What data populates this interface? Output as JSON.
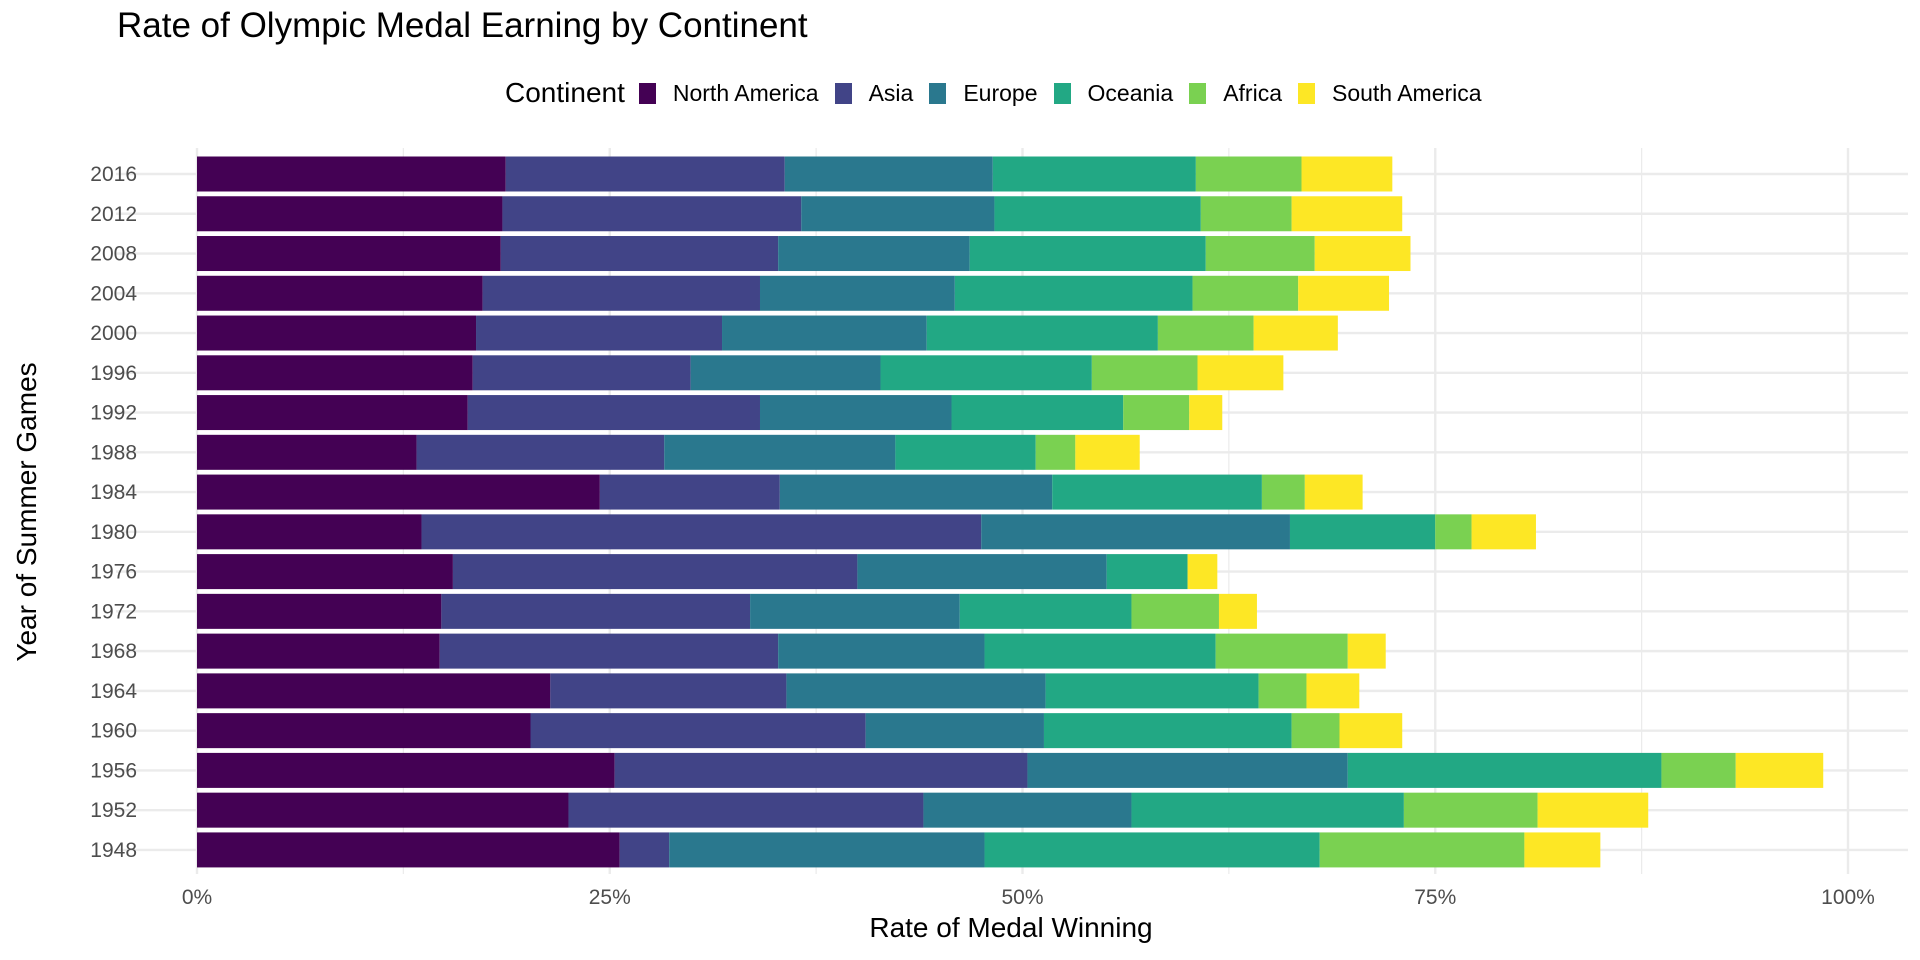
{
  "chart_data": {
    "type": "bar",
    "orientation": "horizontal",
    "stacked": true,
    "title": "Rate of Olympic Medal Earning by Continent",
    "xlabel": "Rate of Medal Winning",
    "ylabel": "Year of Summer Games",
    "xlim": [
      0,
      1
    ],
    "xticks": [
      {
        "value": 0,
        "label": "0%"
      },
      {
        "value": 0.25,
        "label": "25%"
      },
      {
        "value": 0.5,
        "label": "50%"
      },
      {
        "value": 0.75,
        "label": "75%"
      },
      {
        "value": 1.0,
        "label": "100%"
      }
    ],
    "minor_gridlines": [
      0.125,
      0.375,
      0.625,
      0.875
    ],
    "grid": true,
    "legend": {
      "title": "Continent",
      "position": "top"
    },
    "categories": [
      "2016",
      "2012",
      "2008",
      "2004",
      "2000",
      "1996",
      "1992",
      "1988",
      "1984",
      "1980",
      "1976",
      "1972",
      "1968",
      "1964",
      "1960",
      "1956",
      "1952",
      "1948"
    ],
    "series": [
      {
        "name": "North America",
        "color": "#440154",
        "values": [
          0.187,
          0.185,
          0.184,
          0.173,
          0.169,
          0.167,
          0.164,
          0.133,
          0.244,
          0.136,
          0.155,
          0.148,
          0.147,
          0.214,
          0.202,
          0.253,
          0.225,
          0.256
        ]
      },
      {
        "name": "Asia",
        "color": "#414487",
        "values": [
          0.169,
          0.181,
          0.168,
          0.168,
          0.149,
          0.132,
          0.177,
          0.15,
          0.109,
          0.339,
          0.245,
          0.187,
          0.205,
          0.143,
          0.203,
          0.25,
          0.215,
          0.03
        ]
      },
      {
        "name": "Europe",
        "color": "#2A788E",
        "values": [
          0.126,
          0.117,
          0.116,
          0.118,
          0.124,
          0.115,
          0.116,
          0.14,
          0.165,
          0.187,
          0.151,
          0.127,
          0.125,
          0.157,
          0.108,
          0.194,
          0.126,
          0.191
        ]
      },
      {
        "name": "Oceania",
        "color": "#22A884",
        "values": [
          0.123,
          0.125,
          0.143,
          0.144,
          0.14,
          0.128,
          0.104,
          0.085,
          0.127,
          0.088,
          0.049,
          0.104,
          0.14,
          0.129,
          0.15,
          0.19,
          0.165,
          0.203
        ]
      },
      {
        "name": "Africa",
        "color": "#7AD151",
        "values": [
          0.064,
          0.055,
          0.066,
          0.064,
          0.058,
          0.064,
          0.04,
          0.024,
          0.026,
          0.022,
          0.0,
          0.053,
          0.08,
          0.029,
          0.029,
          0.045,
          0.081,
          0.124
        ]
      },
      {
        "name": "South America",
        "color": "#FDE725",
        "values": [
          0.055,
          0.067,
          0.058,
          0.055,
          0.051,
          0.052,
          0.02,
          0.039,
          0.035,
          0.039,
          0.018,
          0.023,
          0.023,
          0.032,
          0.038,
          0.053,
          0.067,
          0.046
        ]
      }
    ]
  },
  "colors": {
    "gridline": "#EBEBEB",
    "tick_text": "#4D4D4D",
    "background": "#FFFFFF"
  }
}
